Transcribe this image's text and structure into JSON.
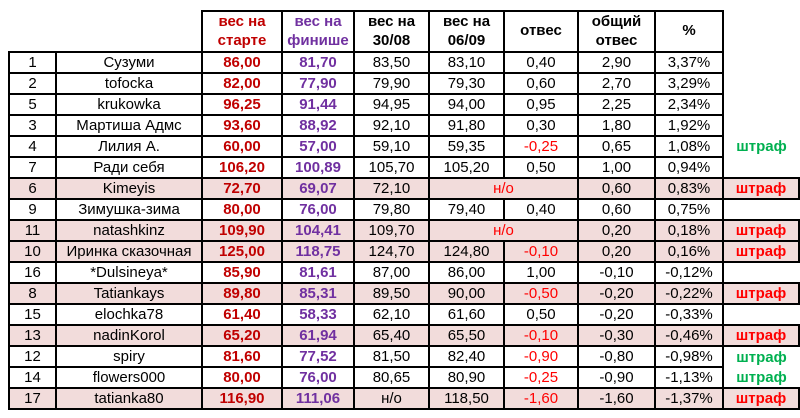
{
  "header": {
    "weight_start": "вес на старте",
    "weight_finish": "вес на финише",
    "weight_3008": "вес на 30/08",
    "weight_0609": "вес на 06/09",
    "loss": "отвес",
    "total_loss": "общий отвес",
    "percent": "%"
  },
  "penalty_label": "штраф",
  "no_data_label": "н/о",
  "colors": {
    "start_text": "#c00000",
    "finish_text": "#7030a0",
    "negative_loss_text": "#ff0000",
    "penalty_red": "#ff0000",
    "penalty_green": "#00b050",
    "row_highlight": "#f2dcdb",
    "border": "#000000"
  },
  "rows": [
    {
      "num": "1",
      "name": "Сузуми",
      "start": "86,00",
      "finish": "81,70",
      "w3008": "83,50",
      "w0609": "83,10",
      "loss": "0,40",
      "total": "2,90",
      "pct": "3,37%",
      "penalty": "none",
      "pink": false,
      "no_data": null
    },
    {
      "num": "2",
      "name": "tofocka",
      "start": "82,00",
      "finish": "77,90",
      "w3008": "79,90",
      "w0609": "79,30",
      "loss": "0,60",
      "total": "2,70",
      "pct": "3,29%",
      "penalty": "none",
      "pink": false,
      "no_data": null
    },
    {
      "num": "5",
      "name": "krukowka",
      "start": "96,25",
      "finish": "91,44",
      "w3008": "94,95",
      "w0609": "94,00",
      "loss": "0,95",
      "total": "2,25",
      "pct": "2,34%",
      "penalty": "none",
      "pink": false,
      "no_data": null
    },
    {
      "num": "3",
      "name": "Мартиша Адмс",
      "start": "93,60",
      "finish": "88,92",
      "w3008": "92,10",
      "w0609": "91,80",
      "loss": "0,30",
      "total": "1,80",
      "pct": "1,92%",
      "penalty": "none",
      "pink": false,
      "no_data": null
    },
    {
      "num": "4",
      "name": "Лилия А.",
      "start": "60,00",
      "finish": "57,00",
      "w3008": "59,10",
      "w0609": "59,35",
      "loss": "-0,25",
      "total": "0,65",
      "pct": "1,08%",
      "penalty": "green",
      "pink": false,
      "no_data": null
    },
    {
      "num": "7",
      "name": "Ради себя",
      "start": "106,20",
      "finish": "100,89",
      "w3008": "105,70",
      "w0609": "105,20",
      "loss": "0,50",
      "total": "1,00",
      "pct": "0,94%",
      "penalty": "none",
      "pink": false,
      "no_data": null
    },
    {
      "num": "6",
      "name": "Kimeyis",
      "start": "72,70",
      "finish": "69,07",
      "w3008": "72,10",
      "w0609": "",
      "loss": "",
      "total": "0,60",
      "pct": "0,83%",
      "penalty": "red",
      "pink": true,
      "no_data": "merged"
    },
    {
      "num": "9",
      "name": "Зимушка-зима",
      "start": "80,00",
      "finish": "76,00",
      "w3008": "79,80",
      "w0609": "79,40",
      "loss": "0,40",
      "total": "0,60",
      "pct": "0,75%",
      "penalty": "none",
      "pink": false,
      "no_data": null
    },
    {
      "num": "11",
      "name": "natashkinz",
      "start": "109,90",
      "finish": "104,41",
      "w3008": "109,70",
      "w0609": "",
      "loss": "",
      "total": "0,20",
      "pct": "0,18%",
      "penalty": "red",
      "pink": true,
      "no_data": "merged"
    },
    {
      "num": "10",
      "name": "Иринка сказочная",
      "start": "125,00",
      "finish": "118,75",
      "w3008": "124,70",
      "w0609": "124,80",
      "loss": "-0,10",
      "total": "0,20",
      "pct": "0,16%",
      "penalty": "red",
      "pink": true,
      "no_data": null
    },
    {
      "num": "16",
      "name": "*Dulsineya*",
      "start": "85,90",
      "finish": "81,61",
      "w3008": "87,00",
      "w0609": "86,00",
      "loss": "1,00",
      "total": "-0,10",
      "pct": "-0,12%",
      "penalty": "none",
      "pink": false,
      "no_data": null
    },
    {
      "num": "8",
      "name": "Tatiankays",
      "start": "89,80",
      "finish": "85,31",
      "w3008": "89,50",
      "w0609": "90,00",
      "loss": "-0,50",
      "total": "-0,20",
      "pct": "-0,22%",
      "penalty": "red",
      "pink": true,
      "no_data": null
    },
    {
      "num": "15",
      "name": "elochka78",
      "start": "61,40",
      "finish": "58,33",
      "w3008": "62,10",
      "w0609": "61,60",
      "loss": "0,50",
      "total": "-0,20",
      "pct": "-0,33%",
      "penalty": "none",
      "pink": false,
      "no_data": null
    },
    {
      "num": "13",
      "name": "nadinKorol",
      "start": "65,20",
      "finish": "61,94",
      "w3008": "65,40",
      "w0609": "65,50",
      "loss": "-0,10",
      "total": "-0,30",
      "pct": "-0,46%",
      "penalty": "red",
      "pink": true,
      "no_data": null
    },
    {
      "num": "12",
      "name": "spiry",
      "start": "81,60",
      "finish": "77,52",
      "w3008": "81,50",
      "w0609": "82,40",
      "loss": "-0,90",
      "total": "-0,80",
      "pct": "-0,98%",
      "penalty": "green",
      "pink": false,
      "no_data": null
    },
    {
      "num": "14",
      "name": "flowers000",
      "start": "80,00",
      "finish": "76,00",
      "w3008": "80,65",
      "w0609": "80,90",
      "loss": "-0,25",
      "total": "-0,90",
      "pct": "-1,13%",
      "penalty": "green",
      "pink": false,
      "no_data": null
    },
    {
      "num": "17",
      "name": "tatianka80",
      "start": "116,90",
      "finish": "111,06",
      "w3008": "н/о",
      "w0609": "118,50",
      "loss": "-1,60",
      "total": "-1,60",
      "pct": "-1,37%",
      "penalty": "red",
      "pink": true,
      "no_data": "w3008"
    }
  ]
}
